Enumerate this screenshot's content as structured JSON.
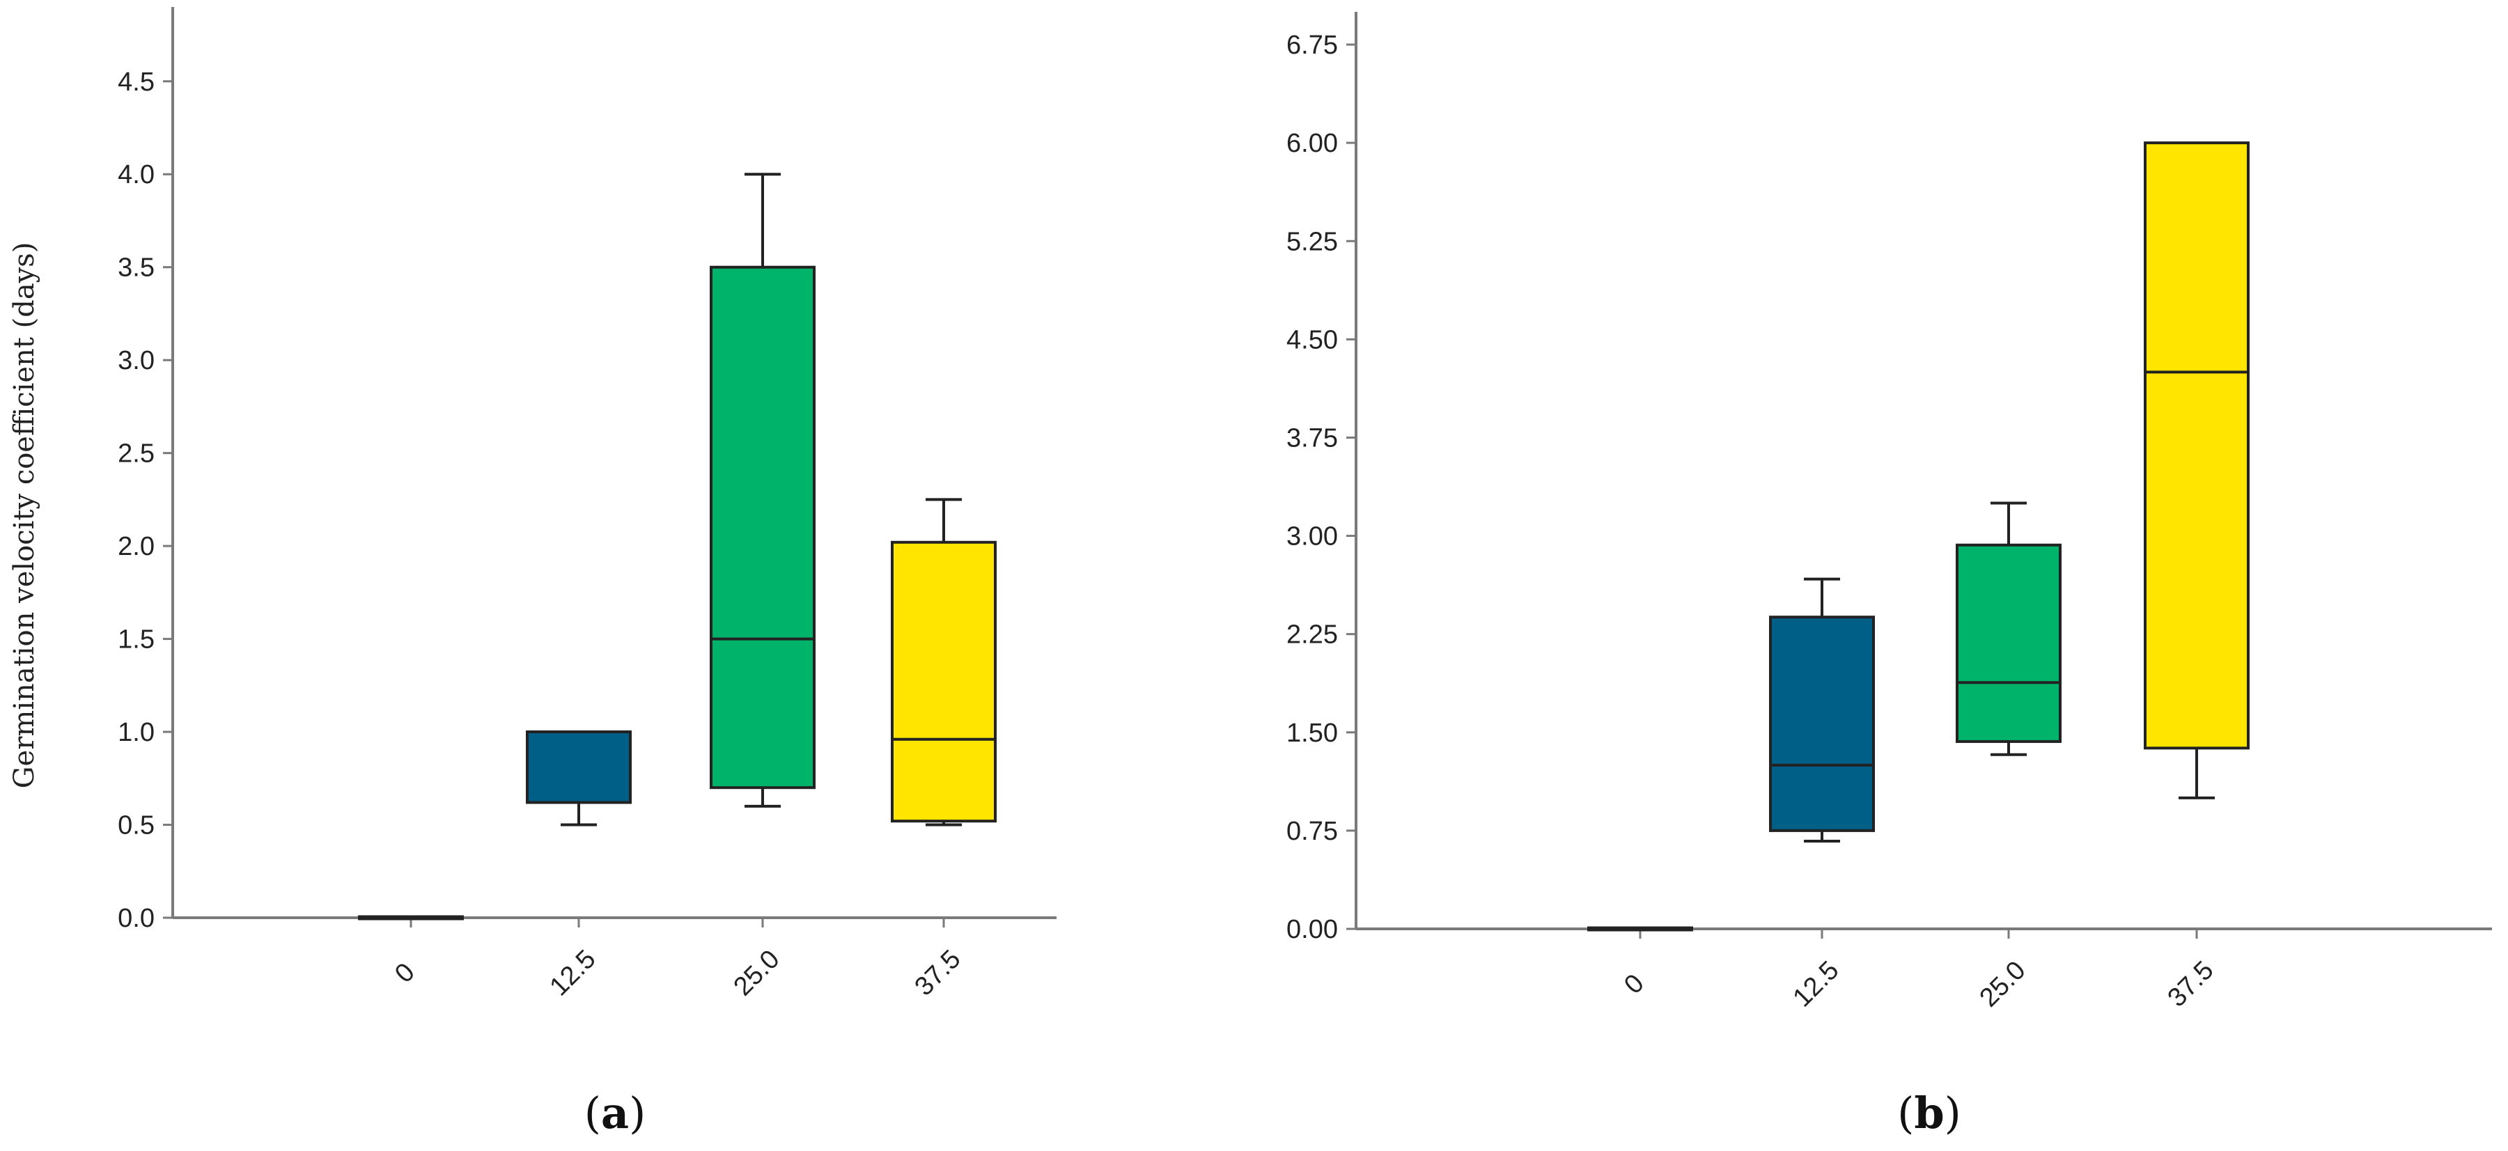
{
  "chart_data": [
    {
      "type": "box",
      "panel_label": "(a)",
      "ylabel": "Germination velocity coefficient (days)",
      "xlabel": "",
      "ylim": [
        0,
        4.9
      ],
      "yticks": [
        "0.0",
        "0.5",
        "1.0",
        "1.5",
        "2.0",
        "2.5",
        "3.0",
        "3.5",
        "4.0",
        "4.5"
      ],
      "categories": [
        "0",
        "12.5",
        "25.0",
        "37.5"
      ],
      "boxes": [
        {
          "category": "0",
          "min": 0,
          "q1": 0,
          "median": 0,
          "q3": 0,
          "max": 0,
          "color": "#1f2a44"
        },
        {
          "category": "12.5",
          "min": 0.5,
          "q1": 0.62,
          "median": 1.0,
          "q3": 1.0,
          "max": 1.0,
          "color": "#005f87"
        },
        {
          "category": "25.0",
          "min": 0.6,
          "q1": 0.7,
          "median": 1.5,
          "q3": 3.5,
          "max": 4.0,
          "color": "#00b36b"
        },
        {
          "category": "37.5",
          "min": 0.5,
          "q1": 0.52,
          "median": 0.96,
          "q3": 2.02,
          "max": 2.25,
          "color": "#ffe500"
        }
      ]
    },
    {
      "type": "box",
      "panel_label": "(b)",
      "ylabel": "",
      "xlabel": "",
      "ylim": [
        0,
        7.0
      ],
      "yticks": [
        "0.00",
        "0.75",
        "1.50",
        "2.25",
        "3.00",
        "3.75",
        "4.50",
        "5.25",
        "6.00",
        "6.75"
      ],
      "categories": [
        "0",
        "12.5",
        "25.0",
        "37.5"
      ],
      "boxes": [
        {
          "category": "0",
          "min": 0,
          "q1": 0,
          "median": 0,
          "q3": 0,
          "max": 0,
          "color": "#1f2a44"
        },
        {
          "category": "12.5",
          "min": 0.67,
          "q1": 0.75,
          "median": 1.25,
          "q3": 2.38,
          "max": 2.67,
          "color": "#005f87"
        },
        {
          "category": "25.0",
          "min": 1.33,
          "q1": 1.43,
          "median": 1.88,
          "q3": 2.93,
          "max": 3.25,
          "color": "#00b36b"
        },
        {
          "category": "37.5",
          "min": 1.0,
          "q1": 1.38,
          "median": 4.25,
          "q3": 6.0,
          "max": 6.0,
          "color": "#ffe500"
        }
      ]
    }
  ]
}
